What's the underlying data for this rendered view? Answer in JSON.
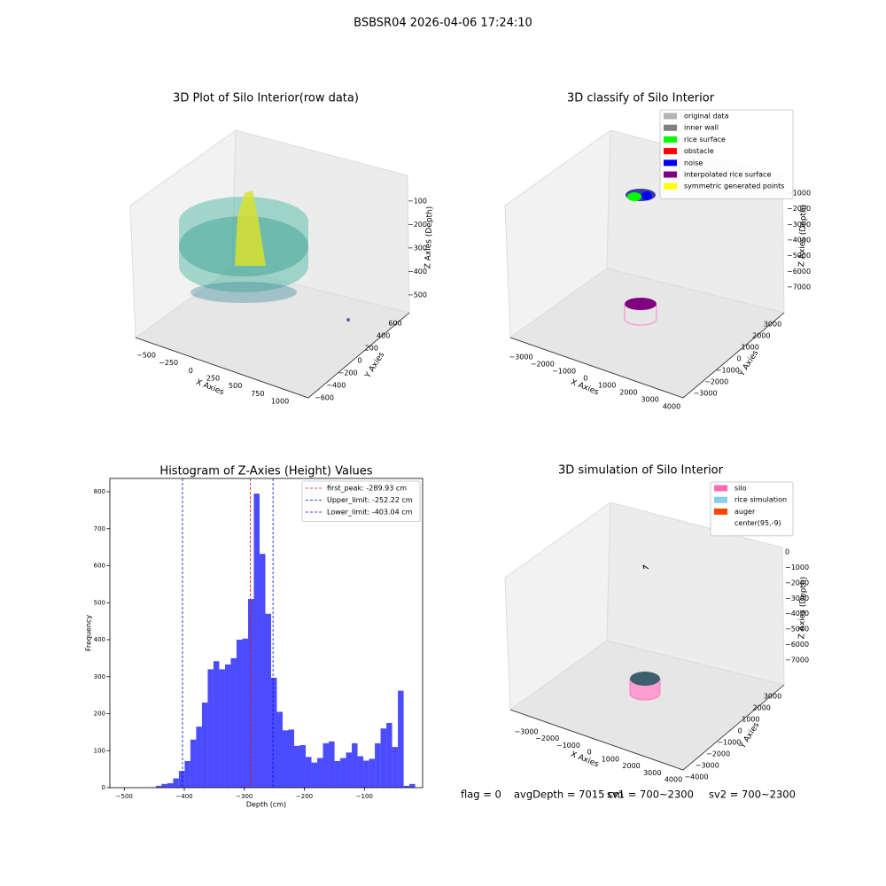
{
  "title": "BSBSR04 2026-04-06 17:24:10",
  "chart_data": [
    {
      "type": "scatter3d",
      "title": "3D Plot of Silo Interior(row data)",
      "xlabel": "X Axies",
      "ylabel": "Y Axies",
      "zlabel": "Z Axies (Depth)",
      "xticks": [
        {
          "value": -500,
          "label": "−500"
        },
        {
          "value": -250,
          "label": "−250"
        },
        0,
        250,
        500,
        750,
        1000
      ],
      "yticks": [
        {
          "value": -600,
          "label": "−600"
        },
        {
          "value": -400,
          "label": "−400"
        },
        {
          "value": -200,
          "label": "−200"
        },
        0,
        200,
        400,
        600
      ],
      "zticks": [
        {
          "value": -100,
          "label": "−100"
        },
        {
          "value": -200,
          "label": "−200"
        },
        {
          "value": -300,
          "label": "−300"
        },
        {
          "value": -400,
          "label": "−400"
        },
        {
          "value": -500,
          "label": "−500"
        }
      ]
    },
    {
      "type": "scatter3d",
      "title": "3D classify of Silo Interior",
      "xlabel": "X Axies",
      "ylabel": "Y Axies",
      "zlabel": "Z Axies (Depth)",
      "xticks": [
        {
          "value": -3000,
          "label": "−3000"
        },
        {
          "value": -2000,
          "label": "−2000"
        },
        {
          "value": -1000,
          "label": "−1000"
        },
        0,
        1000,
        2000,
        3000,
        4000
      ],
      "yticks": [
        {
          "value": -3000,
          "label": "−3000"
        },
        {
          "value": -2000,
          "label": "−2000"
        },
        {
          "value": -1000,
          "label": "−1000"
        },
        0,
        1000,
        2000,
        3000
      ],
      "zticks": [
        {
          "value": -1000,
          "label": "−1000"
        },
        {
          "value": -2000,
          "label": "−2000"
        },
        {
          "value": -3000,
          "label": "−3000"
        },
        {
          "value": -4000,
          "label": "−4000"
        },
        {
          "value": -5000,
          "label": "−5000"
        },
        {
          "value": -6000,
          "label": "−6000"
        },
        {
          "value": -7000,
          "label": "−7000"
        }
      ],
      "legend": [
        {
          "label": "original data",
          "color": "#b3b3b3"
        },
        {
          "label": "inner wall",
          "color": "#808080"
        },
        {
          "label": "rice surface",
          "color": "#00ff00"
        },
        {
          "label": "obstacle",
          "color": "#ff0000"
        },
        {
          "label": "noise",
          "color": "#0000ff"
        },
        {
          "label": "interpolated rice surface",
          "color": "#800080"
        },
        {
          "label": "symmetric generated points",
          "color": "#ffff00"
        }
      ]
    },
    {
      "type": "histogram",
      "title": "Histogram of Z-Axies (Height) Values",
      "xlabel": "Depth (cm)",
      "ylabel": "Frequency",
      "color": "#4c4cff",
      "bins": [
        -505,
        -495.4,
        -485.8,
        -476.2,
        -466.6,
        -457,
        -447.4,
        -437.8,
        -428.2,
        -418.6,
        -409,
        -399.4,
        -389.8,
        -380.2,
        -370.6,
        -361,
        -351.4,
        -341.8,
        -332.2,
        -322.6,
        -313,
        -303.4,
        -293.8,
        -284.2,
        -274.6,
        -265,
        -255.4,
        -245.8,
        -236.2,
        -226.6,
        -217,
        -207.4,
        -197.8,
        -188.2,
        -178.6,
        -169,
        -159.4,
        -149.8,
        -140.2,
        -130.6,
        -121,
        -111.4,
        -101.8,
        -92.2,
        -82.6,
        -73,
        -63.4,
        -53.8,
        -44.2,
        -34.6,
        -25,
        -15.4
      ],
      "values": [
        0,
        0,
        0,
        0,
        0,
        1,
        5,
        10,
        12,
        25,
        45,
        72,
        130,
        165,
        230,
        320,
        342,
        320,
        333,
        350,
        400,
        403,
        510,
        795,
        632,
        470,
        297,
        205,
        155,
        157,
        113,
        115,
        83,
        68,
        80,
        120,
        125,
        72,
        80,
        95,
        120,
        85,
        73,
        78,
        120,
        160,
        175,
        110,
        262,
        5,
        10
      ],
      "xlim": [
        -524,
        -3
      ],
      "ylim": [
        0,
        836
      ],
      "xticks": [
        {
          "value": -500,
          "label": "−500"
        },
        {
          "value": -400,
          "label": "−400"
        },
        {
          "value": -300,
          "label": "−300"
        },
        {
          "value": -200,
          "label": "−200"
        },
        {
          "value": -100,
          "label": "−100"
        }
      ],
      "yticks": [
        0,
        100,
        200,
        300,
        400,
        500,
        600,
        700,
        800
      ],
      "vlines": [
        {
          "name": "first_peak: -289.93 cm",
          "value": -289.93,
          "color": "#ff0000"
        },
        {
          "name": "Upper_limit: -252.22 cm",
          "value": -252.22,
          "color": "#0000ff"
        },
        {
          "name": "Lower_limit: -403.04 cm",
          "value": -403.04,
          "color": "#0000ff"
        }
      ],
      "legend_loc": "upper right"
    },
    {
      "type": "scatter3d",
      "title": "3D simulation of Silo Interior",
      "xlabel": "X Axies",
      "ylabel": "Y Axies",
      "zlabel": "Z Axies (Depth)",
      "xticks": [
        {
          "value": -3000,
          "label": "−3000"
        },
        {
          "value": -2000,
          "label": "−2000"
        },
        {
          "value": -1000,
          "label": "−1000"
        },
        0,
        1000,
        2000,
        3000,
        4000
      ],
      "yticks": [
        {
          "value": -4000,
          "label": "−4000"
        },
        {
          "value": -3000,
          "label": "−3000"
        },
        {
          "value": -2000,
          "label": "−2000"
        },
        {
          "value": -1000,
          "label": "−1000"
        },
        0,
        1000,
        2000,
        3000
      ],
      "zticks": [
        0,
        {
          "value": -1000,
          "label": "−1000"
        },
        {
          "value": -2000,
          "label": "−2000"
        },
        {
          "value": -3000,
          "label": "−3000"
        },
        {
          "value": -4000,
          "label": "−4000"
        },
        {
          "value": -5000,
          "label": "−5000"
        },
        {
          "value": -6000,
          "label": "−6000"
        },
        {
          "value": -7000,
          "label": "−7000"
        }
      ],
      "legend": [
        {
          "label": "silo",
          "color": "#ff69b4"
        },
        {
          "label": "rice simulation",
          "color": "#87ceeb"
        },
        {
          "label": "auger",
          "color": "#ff4500"
        },
        {
          "label": "center(95,-9)",
          "color": "#ffffff"
        }
      ],
      "annotations": [
        "flag = 0",
        "avgDepth = 7015 cm",
        "sv1 = 700~2300",
        "sv2 = 700~2300"
      ]
    }
  ]
}
